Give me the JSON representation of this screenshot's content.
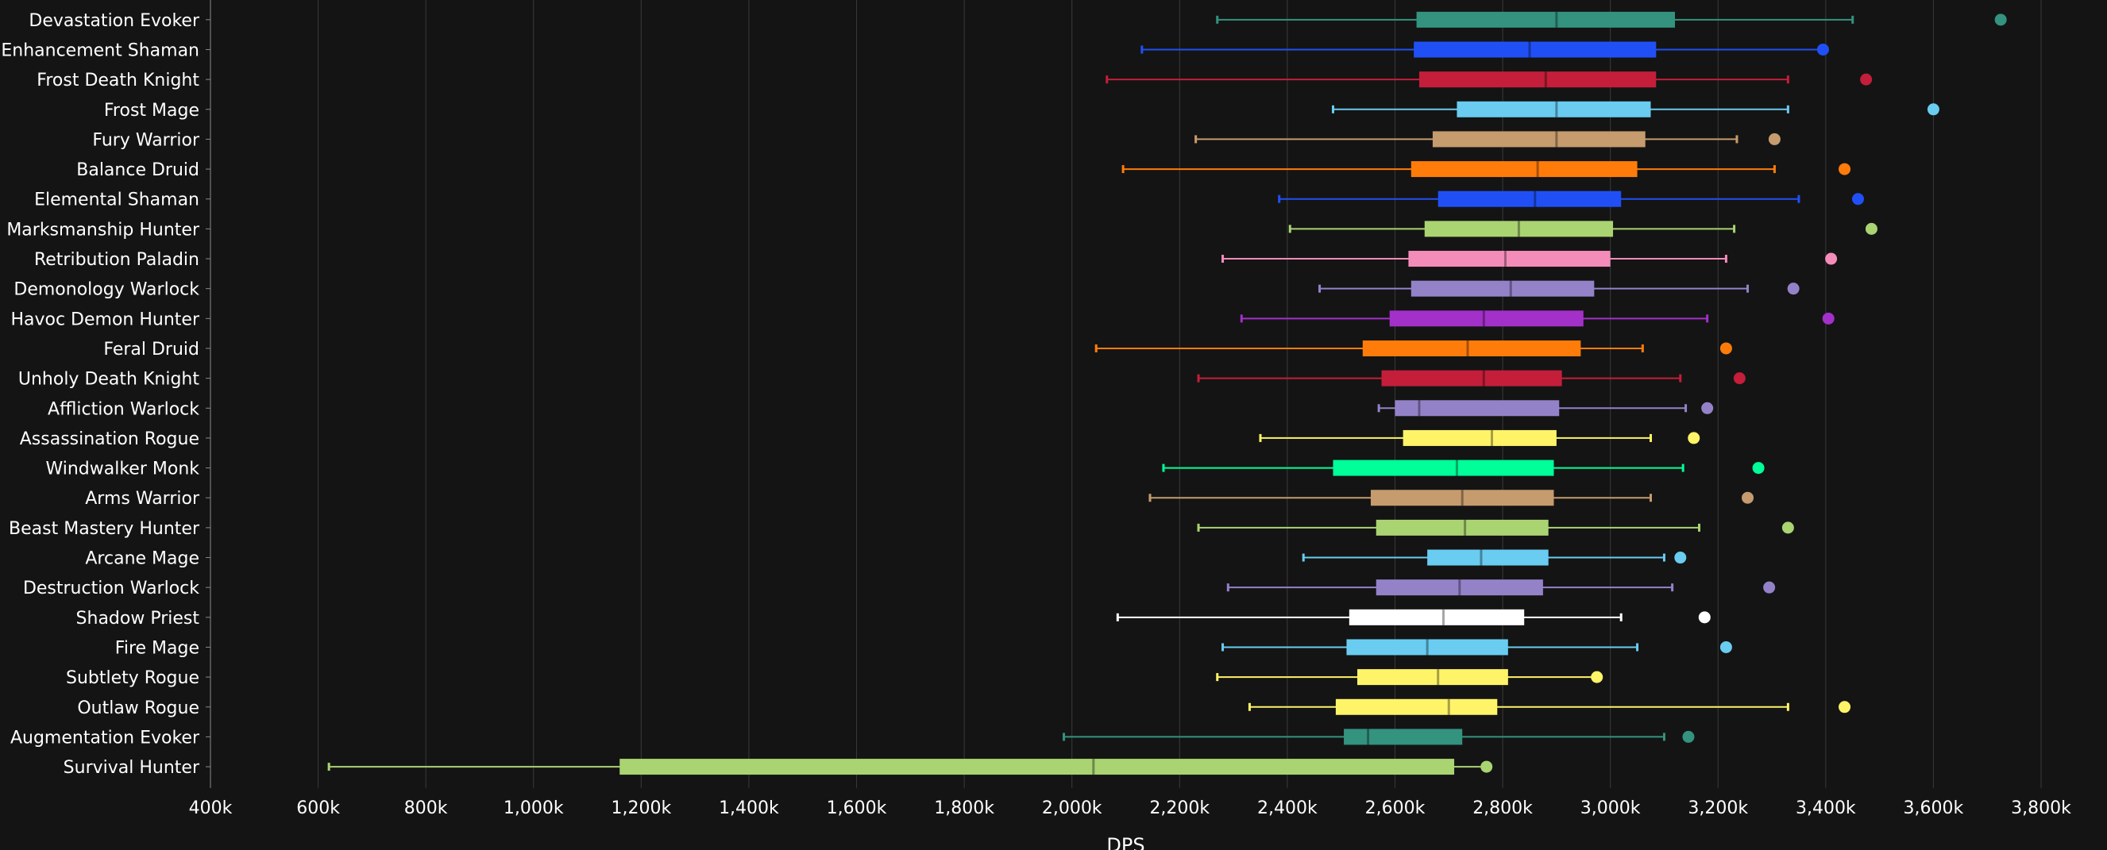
{
  "chart_data": {
    "type": "boxplot",
    "xlabel": "DPS",
    "ylabel": "",
    "xlim": [
      400000,
      3800000
    ],
    "x_ticks": [
      400000,
      600000,
      800000,
      1000000,
      1200000,
      1400000,
      1600000,
      1800000,
      2000000,
      2200000,
      2400000,
      2600000,
      2800000,
      3000000,
      3200000,
      3400000,
      3600000,
      3800000
    ],
    "x_tick_labels": [
      "400k",
      "600k",
      "800k",
      "1,000k",
      "1,200k",
      "1,400k",
      "1,600k",
      "1,800k",
      "2,000k",
      "2,200k",
      "2,400k",
      "2,600k",
      "2,800k",
      "3,000k",
      "3,200k",
      "3,400k",
      "3,600k",
      "3,800k"
    ],
    "grid": true,
    "colors": {
      "background": "#141414",
      "gridline": "#3a3a3a",
      "text": "#ffffff"
    },
    "series": [
      {
        "name": "Devastation Evoker",
        "color": "#33937f",
        "min": 2270000,
        "q1": 2640000,
        "median": 2900000,
        "q3": 3120000,
        "max": 3450000,
        "outlier": 3725000
      },
      {
        "name": "Enhancement Shaman",
        "color": "#2050f5",
        "min": 2130000,
        "q1": 2635000,
        "median": 2850000,
        "q3": 3085000,
        "max": 3395000,
        "outlier": 3395000
      },
      {
        "name": "Frost Death Knight",
        "color": "#c41e3a",
        "min": 2065000,
        "q1": 2645000,
        "median": 2880000,
        "q3": 3085000,
        "max": 3330000,
        "outlier": 3475000
      },
      {
        "name": "Frost Mage",
        "color": "#69ccf0",
        "min": 2485000,
        "q1": 2715000,
        "median": 2900000,
        "q3": 3075000,
        "max": 3330000,
        "outlier": 3600000
      },
      {
        "name": "Fury Warrior",
        "color": "#c69b6d",
        "min": 2230000,
        "q1": 2670000,
        "median": 2900000,
        "q3": 3065000,
        "max": 3235000,
        "outlier": 3305000
      },
      {
        "name": "Balance Druid",
        "color": "#ff7c0a",
        "min": 2095000,
        "q1": 2630000,
        "median": 2865000,
        "q3": 3050000,
        "max": 3305000,
        "outlier": 3435000
      },
      {
        "name": "Elemental Shaman",
        "color": "#2050f5",
        "min": 2385000,
        "q1": 2680000,
        "median": 2860000,
        "q3": 3020000,
        "max": 3350000,
        "outlier": 3460000
      },
      {
        "name": "Marksmanship Hunter",
        "color": "#aad372",
        "min": 2405000,
        "q1": 2655000,
        "median": 2830000,
        "q3": 3005000,
        "max": 3230000,
        "outlier": 3485000
      },
      {
        "name": "Retribution Paladin",
        "color": "#f48cba",
        "min": 2280000,
        "q1": 2625000,
        "median": 2805000,
        "q3": 3000000,
        "max": 3215000,
        "outlier": 3410000
      },
      {
        "name": "Demonology Warlock",
        "color": "#9482c9",
        "min": 2460000,
        "q1": 2630000,
        "median": 2815000,
        "q3": 2970000,
        "max": 3255000,
        "outlier": 3340000
      },
      {
        "name": "Havoc Demon Hunter",
        "color": "#a330c9",
        "min": 2315000,
        "q1": 2590000,
        "median": 2765000,
        "q3": 2950000,
        "max": 3180000,
        "outlier": 3405000
      },
      {
        "name": "Feral Druid",
        "color": "#ff7c0a",
        "min": 2045000,
        "q1": 2540000,
        "median": 2735000,
        "q3": 2945000,
        "max": 3060000,
        "outlier": 3215000
      },
      {
        "name": "Unholy Death Knight",
        "color": "#c41e3a",
        "min": 2235000,
        "q1": 2575000,
        "median": 2765000,
        "q3": 2910000,
        "max": 3130000,
        "outlier": 3240000
      },
      {
        "name": "Affliction Warlock",
        "color": "#9482c9",
        "min": 2570000,
        "q1": 2600000,
        "median": 2645000,
        "q3": 2905000,
        "max": 3140000,
        "outlier": 3180000
      },
      {
        "name": "Assassination Rogue",
        "color": "#fff468",
        "min": 2350000,
        "q1": 2615000,
        "median": 2780000,
        "q3": 2900000,
        "max": 3075000,
        "outlier": 3155000
      },
      {
        "name": "Windwalker Monk",
        "color": "#00ff98",
        "min": 2170000,
        "q1": 2485000,
        "median": 2715000,
        "q3": 2895000,
        "max": 3135000,
        "outlier": 3275000
      },
      {
        "name": "Arms Warrior",
        "color": "#c69b6d",
        "min": 2145000,
        "q1": 2555000,
        "median": 2725000,
        "q3": 2895000,
        "max": 3075000,
        "outlier": 3255000
      },
      {
        "name": "Beast Mastery Hunter",
        "color": "#aad372",
        "min": 2235000,
        "q1": 2565000,
        "median": 2730000,
        "q3": 2885000,
        "max": 3165000,
        "outlier": 3330000
      },
      {
        "name": "Arcane Mage",
        "color": "#69ccf0",
        "min": 2430000,
        "q1": 2660000,
        "median": 2760000,
        "q3": 2885000,
        "max": 3100000,
        "outlier": 3130000
      },
      {
        "name": "Destruction Warlock",
        "color": "#9482c9",
        "min": 2290000,
        "q1": 2565000,
        "median": 2720000,
        "q3": 2875000,
        "max": 3115000,
        "outlier": 3295000
      },
      {
        "name": "Shadow Priest",
        "color": "#ffffff",
        "min": 2085000,
        "q1": 2515000,
        "median": 2690000,
        "q3": 2840000,
        "max": 3020000,
        "outlier": 3175000
      },
      {
        "name": "Fire Mage",
        "color": "#69ccf0",
        "min": 2280000,
        "q1": 2510000,
        "median": 2660000,
        "q3": 2810000,
        "max": 3050000,
        "outlier": 3215000
      },
      {
        "name": "Subtlety Rogue",
        "color": "#fff468",
        "min": 2270000,
        "q1": 2530000,
        "median": 2680000,
        "q3": 2810000,
        "max": 2975000,
        "outlier": 2975000
      },
      {
        "name": "Outlaw Rogue",
        "color": "#fff468",
        "min": 2330000,
        "q1": 2490000,
        "median": 2700000,
        "q3": 2790000,
        "max": 3330000,
        "outlier": 3435000
      },
      {
        "name": "Augmentation Evoker",
        "color": "#33937f",
        "min": 1985000,
        "q1": 2505000,
        "median": 2550000,
        "q3": 2725000,
        "max": 3100000,
        "outlier": 3145000
      },
      {
        "name": "Survival Hunter",
        "color": "#aad372",
        "min": 620000,
        "q1": 1160000,
        "median": 2040000,
        "q3": 2710000,
        "max": 2770000,
        "outlier": 2770000
      }
    ]
  }
}
